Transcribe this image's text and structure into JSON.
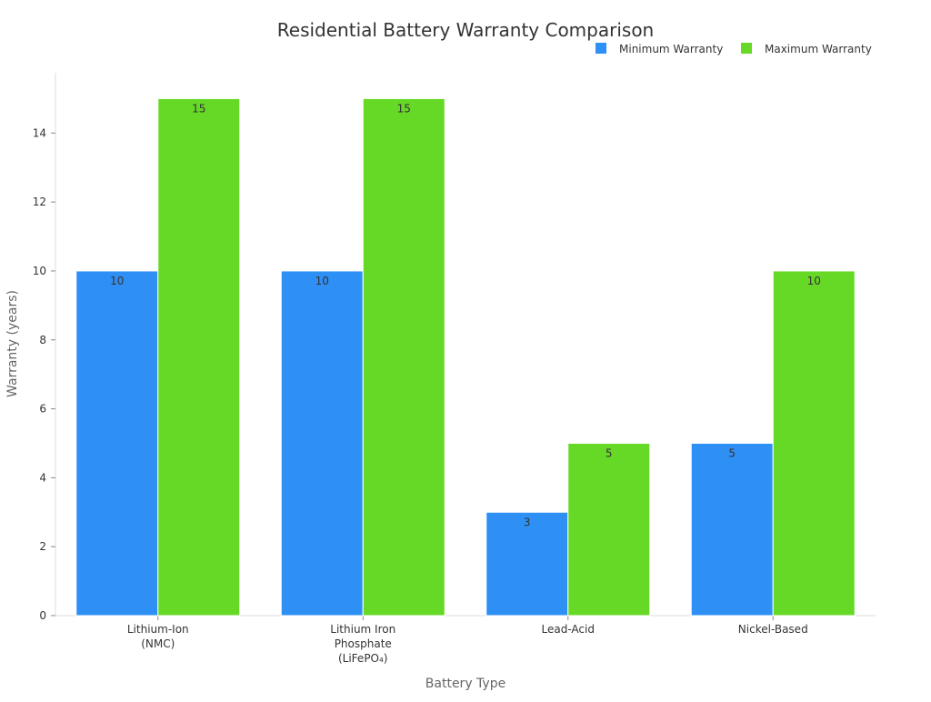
{
  "chart_data": {
    "type": "bar",
    "title": "Residential Battery Warranty Comparison",
    "xlabel": "Battery Type",
    "ylabel": "Warranty (years)",
    "categories": [
      [
        "Lithium-Ion",
        "(NMC)"
      ],
      [
        "Lithium Iron",
        "Phosphate",
        "(LiFePO₄)"
      ],
      [
        "Lead-Acid"
      ],
      [
        "Nickel-Based"
      ]
    ],
    "series": [
      {
        "name": "Minimum Warranty",
        "color": "#2e8ff5",
        "values": [
          10,
          10,
          3,
          5
        ]
      },
      {
        "name": "Maximum Warranty",
        "color": "#66d926",
        "values": [
          15,
          15,
          5,
          10
        ]
      }
    ],
    "ylim": [
      0,
      15.75
    ],
    "yticks": [
      0,
      2,
      4,
      6,
      8,
      10,
      12,
      14
    ],
    "grid": false,
    "legend": "top-right"
  }
}
